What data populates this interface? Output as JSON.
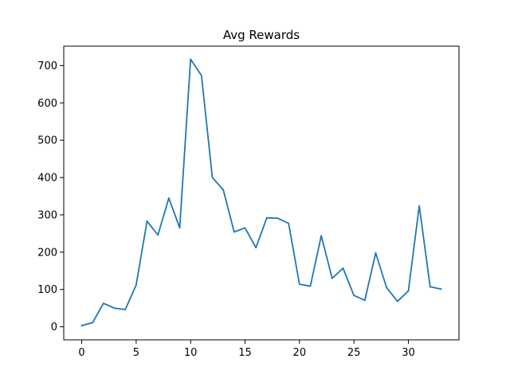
{
  "chart_data": {
    "type": "line",
    "title": "Avg Rewards",
    "xlabel": "",
    "ylabel": "",
    "xlim": [
      -1.65,
      34.65
    ],
    "ylim": [
      -35,
      752
    ],
    "x_ticks": [
      0,
      5,
      10,
      15,
      20,
      25,
      30
    ],
    "y_ticks": [
      0,
      100,
      200,
      300,
      400,
      500,
      600,
      700
    ],
    "grid": false,
    "legend": "none",
    "series": [
      {
        "color": "#1f77b4",
        "x": [
          0,
          1,
          2,
          3,
          4,
          5,
          6,
          7,
          8,
          9,
          10,
          11,
          12,
          13,
          14,
          15,
          16,
          17,
          18,
          19,
          20,
          21,
          22,
          23,
          24,
          25,
          26,
          27,
          28,
          29,
          30,
          31,
          32,
          33
        ],
        "values": [
          3,
          11,
          63,
          50,
          46,
          112,
          283,
          246,
          345,
          265,
          717,
          673,
          400,
          367,
          254,
          265,
          212,
          292,
          291,
          277,
          114,
          109,
          244,
          130,
          157,
          84,
          71,
          198,
          105,
          68,
          96,
          324,
          107,
          101
        ]
      }
    ]
  }
}
